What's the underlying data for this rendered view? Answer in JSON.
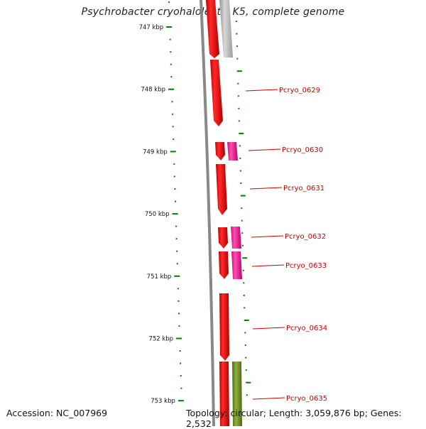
{
  "title": "Psychrobacter cryohalolentis K5, complete genome",
  "footer": {
    "accession": "Accession: NC_007969",
    "summary": "Topology: circular; Length: 3,059,876 bp; Genes: 2,532"
  },
  "ruler": {
    "unit": "kbp",
    "labels": [
      "747 kbp",
      "748 kbp",
      "749 kbp",
      "750 kbp",
      "751 kbp",
      "752 kbp",
      "753 kbp"
    ]
  },
  "gene_labels": [
    "Pcryo_0629",
    "Pcryo_0630",
    "Pcryo_0631",
    "Pcryo_0632",
    "Pcryo_0633",
    "Pcryo_0634",
    "Pcryo_0635"
  ],
  "colors": {
    "cds": "#ee0000",
    "cds_secondary": "#ff1493",
    "cds_olive": "#6b8e23",
    "cds_grey": "#b0b0b0",
    "label": "#cc0000",
    "ruler_tick": "#008000",
    "backbone": "#888888"
  }
}
